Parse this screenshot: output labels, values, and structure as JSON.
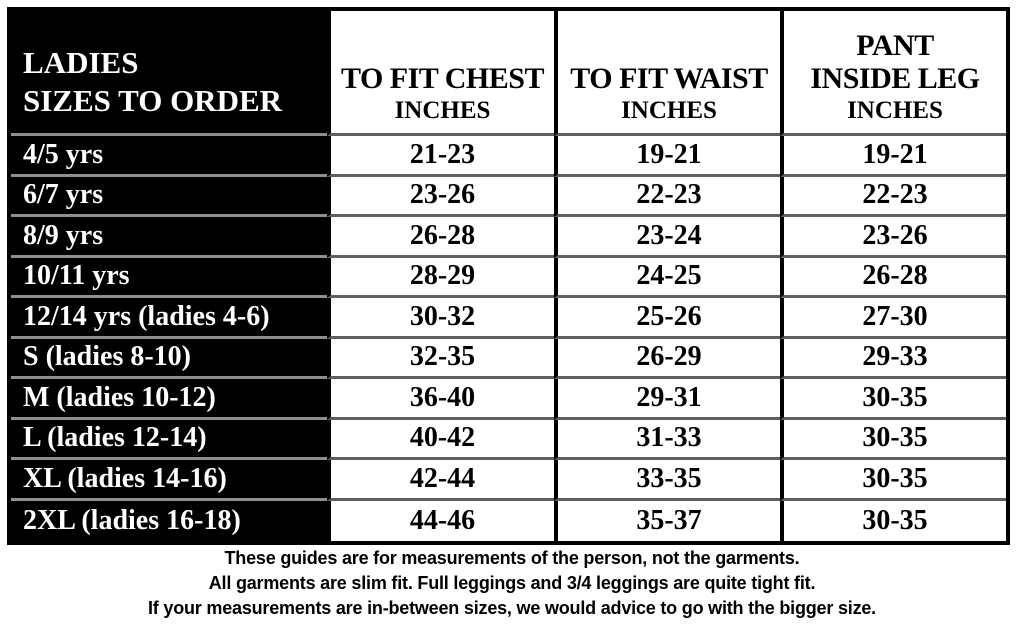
{
  "chart_data": {
    "type": "table",
    "title": "LADIES SIZES TO ORDER",
    "columns": [
      "LADIES SIZES TO ORDER",
      "TO FIT CHEST INCHES",
      "TO FIT WAIST INCHES",
      "PANT INSIDE LEG INCHES"
    ],
    "rows": [
      {
        "size": "4/5 yrs",
        "chest": "21-23",
        "waist": "19-21",
        "leg": "19-21"
      },
      {
        "size": "6/7 yrs",
        "chest": "23-26",
        "waist": "22-23",
        "leg": "22-23"
      },
      {
        "size": "8/9 yrs",
        "chest": "26-28",
        "waist": "23-24",
        "leg": "23-26"
      },
      {
        "size": "10/11 yrs",
        "chest": "28-29",
        "waist": "24-25",
        "leg": "26-28"
      },
      {
        "size": "12/14 yrs (ladies 4-6)",
        "chest": "30-32",
        "waist": "25-26",
        "leg": "27-30"
      },
      {
        "size": "S (ladies 8-10)",
        "chest": "32-35",
        "waist": "26-29",
        "leg": "29-33"
      },
      {
        "size": "M (ladies 10-12)",
        "chest": "36-40",
        "waist": "29-31",
        "leg": "30-35"
      },
      {
        "size": "L (ladies 12-14)",
        "chest": "40-42",
        "waist": "31-33",
        "leg": "30-35"
      },
      {
        "size": "XL (ladies 14-16)",
        "chest": "42-44",
        "waist": "33-35",
        "leg": "30-35"
      },
      {
        "size": "2XL (ladies 16-18)",
        "chest": "44-46",
        "waist": "35-37",
        "leg": "30-35"
      }
    ]
  },
  "header": {
    "sizes_line1": "LADIES",
    "sizes_line2": "SIZES TO ORDER",
    "chest_line1": "TO FIT CHEST",
    "chest_line2": "INCHES",
    "waist_line1": "TO FIT WAIST",
    "waist_line2": "INCHES",
    "leg_line1": "PANT",
    "leg_line2": "INSIDE LEG",
    "leg_line3": "INCHES"
  },
  "footer": {
    "line1": "These guides are for measurements of the person, not the garments.",
    "line2": "All garments are slim fit. Full leggings and 3/4 leggings are quite tight fit.",
    "line3": "If your measurements are in-between sizes, we would advice to go with the bigger size."
  },
  "colors": {
    "header_column_bg": "#000000",
    "header_column_text": "#ffffff",
    "table_border": "#000000",
    "row_divider_on_white": "#5f5f5f",
    "row_divider_on_black": "#8f8f8f",
    "body_text": "#000000",
    "page_bg": "#ffffff"
  }
}
